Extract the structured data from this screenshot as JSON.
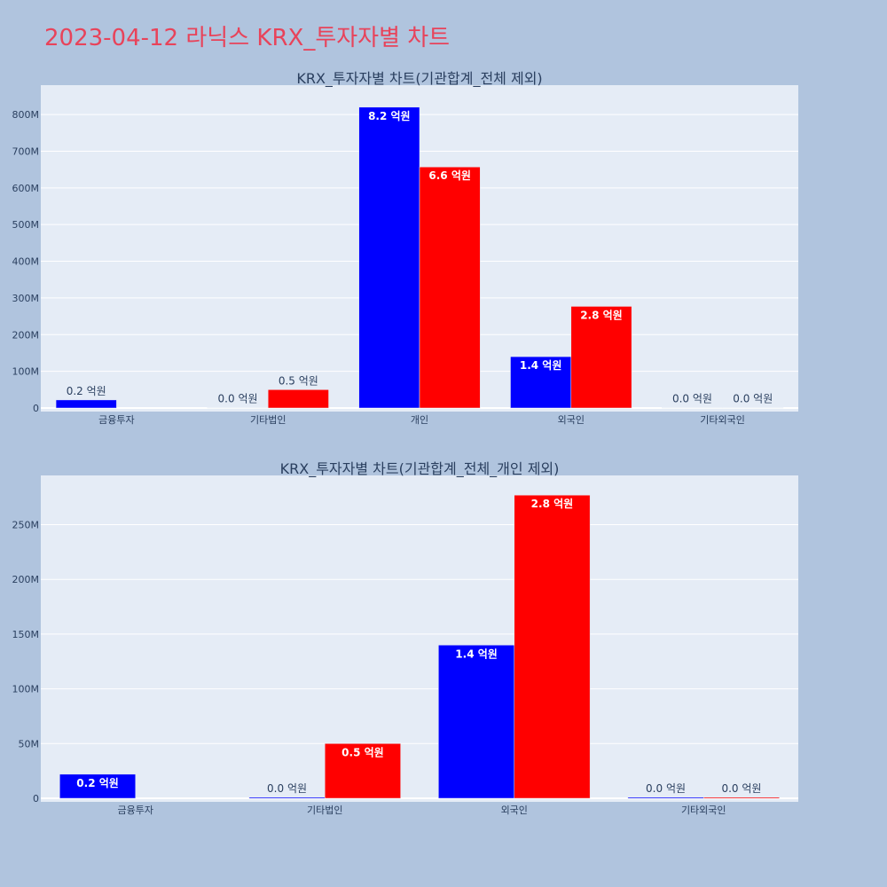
{
  "page_title": "2023-04-12 라닉스 KRX_투자자별 차트",
  "chart_data": [
    {
      "type": "bar",
      "title": "KRX_투자자별 차트(기관합계_전체 제외)",
      "categories": [
        "금융투자",
        "기타법인",
        "개인",
        "외국인",
        "기타외국인"
      ],
      "series": [
        {
          "color": "#0000ff",
          "values": [
            22000000,
            1000000,
            820000000,
            140000000,
            1000000
          ],
          "labels": [
            "0.2 억원",
            "0.0 억원",
            "8.2 억원",
            "1.4 억원",
            "0.0 억원"
          ]
        },
        {
          "color": "#ff0000",
          "values": [
            0,
            50000000,
            657000000,
            277000000,
            1000000
          ],
          "labels": [
            "",
            "0.5 억원",
            "6.6 억원",
            "2.8 억원",
            "0.0 억원"
          ]
        }
      ],
      "yticks": [
        0,
        100000000,
        200000000,
        300000000,
        400000000,
        500000000,
        600000000,
        700000000,
        800000000
      ],
      "ytick_labels": [
        "0",
        "100M",
        "200M",
        "300M",
        "400M",
        "500M",
        "600M",
        "700M",
        "800M"
      ],
      "ylim": [
        0,
        880000000
      ],
      "grid": true,
      "background": "#e5ecf6"
    },
    {
      "type": "bar",
      "title": "KRX_투자자별 차트(기관합계_전체_개인 제외)",
      "categories": [
        "금융투자",
        "기타법인",
        "외국인",
        "기타외국인"
      ],
      "series": [
        {
          "color": "#0000ff",
          "values": [
            22000000,
            1000000,
            140000000,
            1000000
          ],
          "labels": [
            "0.2 억원",
            "0.0 억원",
            "1.4 억원",
            "0.0 억원"
          ]
        },
        {
          "color": "#ff0000",
          "values": [
            0,
            50000000,
            277000000,
            1000000
          ],
          "labels": [
            "",
            "0.5 억원",
            "2.8 억원",
            "0.0 억원"
          ]
        }
      ],
      "yticks": [
        0,
        50000000,
        100000000,
        150000000,
        200000000,
        250000000
      ],
      "ytick_labels": [
        "0",
        "50M",
        "100M",
        "150M",
        "200M",
        "250M"
      ],
      "ylim": [
        0,
        295000000
      ],
      "grid": true,
      "background": "#e5ecf6"
    }
  ]
}
